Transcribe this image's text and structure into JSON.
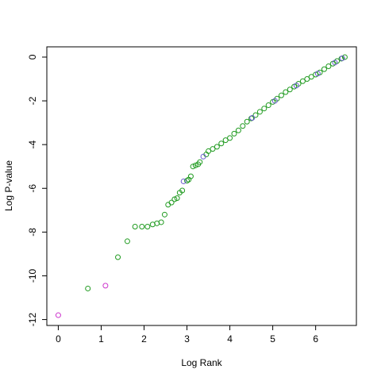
{
  "chart_data": {
    "type": "scatter",
    "xlabel": "Log Rank",
    "ylabel": "Log P-value",
    "xlim": [
      -0.267,
      6.95
    ],
    "ylim": [
      -12.27,
      0.47
    ],
    "xticks": [
      0,
      1,
      2,
      3,
      4,
      5,
      6
    ],
    "yticks": [
      0,
      -2,
      -4,
      -6,
      -8,
      -10,
      -12
    ],
    "series": [
      {
        "color": "#1f9a1f",
        "x": [
          0.69,
          1.39,
          1.61,
          1.79,
          1.95,
          2.08,
          2.2,
          2.3,
          2.4,
          2.48,
          2.56,
          2.64,
          2.71,
          2.77,
          2.83,
          2.89,
          3.0,
          3.04,
          3.09,
          3.14,
          3.2,
          3.26,
          3.3,
          3.45,
          3.5,
          3.6,
          3.7,
          3.8,
          3.9,
          4.0,
          4.1,
          4.2,
          4.3,
          4.4,
          4.5,
          4.6,
          4.7,
          4.8,
          4.9,
          5.0,
          5.1,
          5.2,
          5.3,
          5.4,
          5.5,
          5.6,
          5.7,
          5.8,
          5.9,
          6.0,
          6.1,
          6.2,
          6.3,
          6.4,
          6.5,
          6.6,
          6.68
        ],
        "values": [
          -10.58,
          -9.15,
          -8.42,
          -7.75,
          -7.75,
          -7.75,
          -7.65,
          -7.6,
          -7.55,
          -7.2,
          -6.75,
          -6.65,
          -6.5,
          -6.45,
          -6.2,
          -6.1,
          -5.65,
          -5.6,
          -5.45,
          -5.0,
          -4.95,
          -4.9,
          -4.8,
          -4.45,
          -4.3,
          -4.2,
          -4.1,
          -3.95,
          -3.8,
          -3.7,
          -3.5,
          -3.35,
          -3.15,
          -2.95,
          -2.8,
          -2.65,
          -2.5,
          -2.35,
          -2.2,
          -2.05,
          -1.9,
          -1.75,
          -1.6,
          -1.48,
          -1.35,
          -1.22,
          -1.1,
          -1.0,
          -0.9,
          -0.8,
          -0.7,
          -0.55,
          -0.42,
          -0.3,
          -0.18,
          -0.07,
          0
        ]
      },
      {
        "color": "#cc33cc",
        "x": [
          0,
          1.1
        ],
        "values": [
          -11.8,
          -10.45
        ]
      },
      {
        "color": "#6a5acd",
        "x": [
          2.92,
          3.38,
          4.52,
          5.05,
          5.55,
          6.05,
          6.45,
          6.62
        ],
        "values": [
          -5.68,
          -4.55,
          -2.78,
          -2.0,
          -1.3,
          -0.75,
          -0.25,
          -0.05
        ]
      }
    ]
  }
}
